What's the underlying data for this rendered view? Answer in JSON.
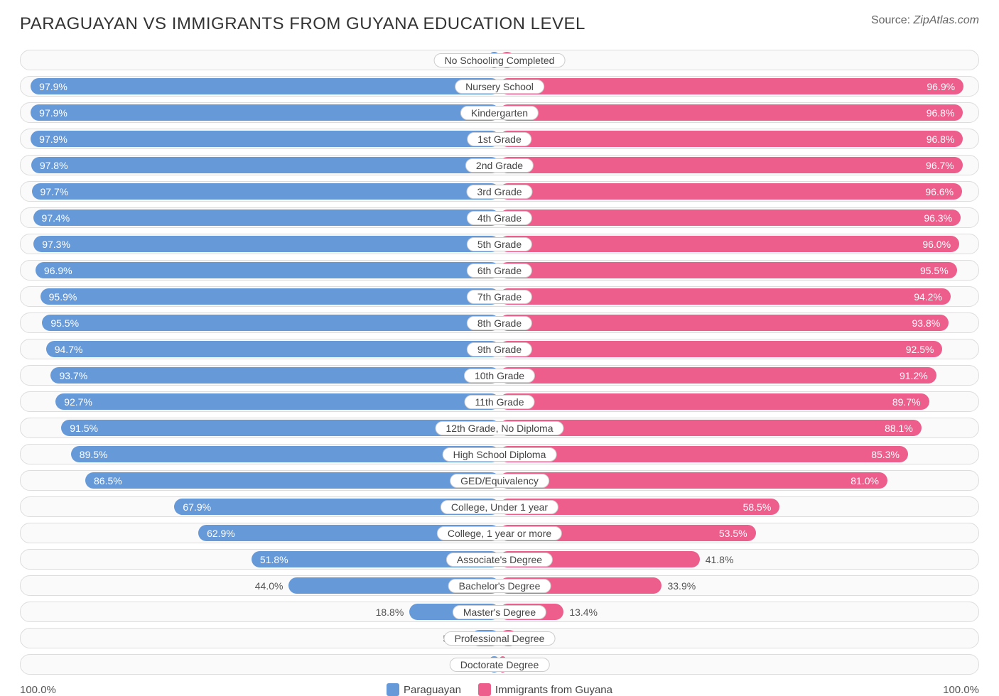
{
  "title": "PARAGUAYAN VS IMMIGRANTS FROM GUYANA EDUCATION LEVEL",
  "source_label": "Source:",
  "source_value": "ZipAtlas.com",
  "chart": {
    "type": "bidirectional-bar",
    "left_series_name": "Paraguayan",
    "right_series_name": "Immigrants from Guyana",
    "left_color": "#6699d8",
    "right_color": "#ed5e8d",
    "track_bg": "#fafafa",
    "track_border": "#dddddd",
    "label_bg": "#ffffff",
    "label_border": "#cccccc",
    "text_inside_color": "#ffffff",
    "text_outside_color": "#555555",
    "category_fontsize": 14,
    "value_fontsize": 14,
    "axis_min": 0,
    "axis_max": 100,
    "axis_left_label": "100.0%",
    "axis_right_label": "100.0%",
    "inside_label_threshold_pct": 45,
    "rows": [
      {
        "category": "No Schooling Completed",
        "left_value": 2.2,
        "right_value": 3.1
      },
      {
        "category": "Nursery School",
        "left_value": 97.9,
        "right_value": 96.9
      },
      {
        "category": "Kindergarten",
        "left_value": 97.9,
        "right_value": 96.8
      },
      {
        "category": "1st Grade",
        "left_value": 97.9,
        "right_value": 96.8
      },
      {
        "category": "2nd Grade",
        "left_value": 97.8,
        "right_value": 96.7
      },
      {
        "category": "3rd Grade",
        "left_value": 97.7,
        "right_value": 96.6
      },
      {
        "category": "4th Grade",
        "left_value": 97.4,
        "right_value": 96.3
      },
      {
        "category": "5th Grade",
        "left_value": 97.3,
        "right_value": 96.0
      },
      {
        "category": "6th Grade",
        "left_value": 96.9,
        "right_value": 95.5
      },
      {
        "category": "7th Grade",
        "left_value": 95.9,
        "right_value": 94.2
      },
      {
        "category": "8th Grade",
        "left_value": 95.5,
        "right_value": 93.8
      },
      {
        "category": "9th Grade",
        "left_value": 94.7,
        "right_value": 92.5
      },
      {
        "category": "10th Grade",
        "left_value": 93.7,
        "right_value": 91.2
      },
      {
        "category": "11th Grade",
        "left_value": 92.7,
        "right_value": 89.7
      },
      {
        "category": "12th Grade, No Diploma",
        "left_value": 91.5,
        "right_value": 88.1
      },
      {
        "category": "High School Diploma",
        "left_value": 89.5,
        "right_value": 85.3
      },
      {
        "category": "GED/Equivalency",
        "left_value": 86.5,
        "right_value": 81.0
      },
      {
        "category": "College, Under 1 year",
        "left_value": 67.9,
        "right_value": 58.5
      },
      {
        "category": "College, 1 year or more",
        "left_value": 62.9,
        "right_value": 53.5
      },
      {
        "category": "Associate's Degree",
        "left_value": 51.8,
        "right_value": 41.8
      },
      {
        "category": "Bachelor's Degree",
        "left_value": 44.0,
        "right_value": 33.9
      },
      {
        "category": "Master's Degree",
        "left_value": 18.8,
        "right_value": 13.4
      },
      {
        "category": "Professional Degree",
        "left_value": 5.9,
        "right_value": 3.7
      },
      {
        "category": "Doctorate Degree",
        "left_value": 2.3,
        "right_value": 1.3
      }
    ]
  }
}
